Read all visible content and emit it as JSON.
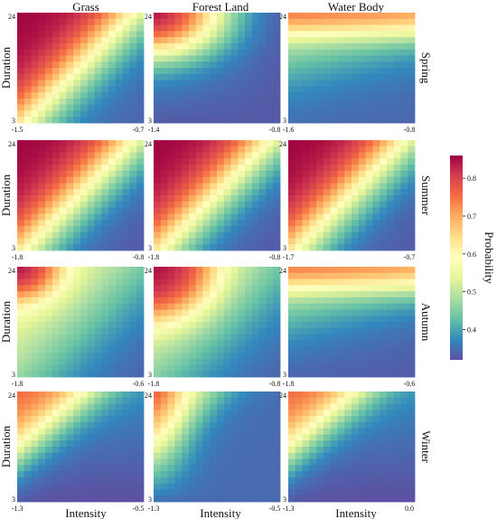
{
  "columns": [
    "Grass",
    "Forest Land",
    "Water Body"
  ],
  "rows": [
    "Spring",
    "Summer",
    "Autumn",
    "Winter"
  ],
  "ylabel": "Duration",
  "xlabel": "Intensity",
  "colorbar": {
    "label": "Probability",
    "min": 0.32,
    "max": 0.86,
    "ticks": [
      "0.8",
      "0.7",
      "0.6",
      "0.5",
      "0.4"
    ],
    "tick_values": [
      0.8,
      0.7,
      0.6,
      0.5,
      0.4
    ],
    "colormap": "Spectral_r"
  },
  "chart_data": {
    "type": "heatmap",
    "y_ticks": [
      "24",
      "3"
    ],
    "y_range": [
      3,
      24
    ],
    "panels": [
      {
        "row": "Spring",
        "col": "Grass",
        "x_ticks": [
          "-1.5",
          "-0.7"
        ],
        "x_range": [
          -1.5,
          -0.7
        ],
        "pattern": "diagonal",
        "min": 0.34,
        "max": 0.86
      },
      {
        "row": "Spring",
        "col": "Forest Land",
        "x_ticks": [
          "-1.4",
          "-0.8"
        ],
        "x_range": [
          -1.4,
          -0.8
        ],
        "pattern": "arc",
        "min": 0.33,
        "max": 0.86
      },
      {
        "row": "Spring",
        "col": "Water Body",
        "x_ticks": [
          "-1.6",
          "-0.8"
        ],
        "x_range": [
          -1.6,
          -0.8
        ],
        "pattern": "topband",
        "min": 0.34,
        "max": 0.82
      },
      {
        "row": "Summer",
        "col": "Grass",
        "x_ticks": [
          "-1.8",
          "-0.8"
        ],
        "x_range": [
          -1.8,
          -0.8
        ],
        "pattern": "diagonal",
        "min": 0.33,
        "max": 0.86
      },
      {
        "row": "Summer",
        "col": "Forest Land",
        "x_ticks": [
          "-1.8",
          "-0.8"
        ],
        "x_range": [
          -1.8,
          -0.8
        ],
        "pattern": "diagonal",
        "min": 0.33,
        "max": 0.86
      },
      {
        "row": "Summer",
        "col": "Water Body",
        "x_ticks": [
          "-1.7",
          "-0.7"
        ],
        "x_range": [
          -1.7,
          -0.7
        ],
        "pattern": "diagonal",
        "min": 0.33,
        "max": 0.86
      },
      {
        "row": "Autumn",
        "col": "Grass",
        "x_ticks": [
          "-1.8",
          "-0.6"
        ],
        "x_range": [
          -1.8,
          -0.6
        ],
        "pattern": "corner",
        "min": 0.33,
        "max": 0.86
      },
      {
        "row": "Autumn",
        "col": "Forest Land",
        "x_ticks": [
          "-1.8",
          "-0.8"
        ],
        "x_range": [
          -1.8,
          -0.8
        ],
        "pattern": "corner-wide",
        "min": 0.33,
        "max": 0.86
      },
      {
        "row": "Autumn",
        "col": "Water Body",
        "x_ticks": [
          "-1.8",
          "-0.6"
        ],
        "x_range": [
          -1.8,
          -0.6
        ],
        "pattern": "topband",
        "min": 0.33,
        "max": 0.82
      },
      {
        "row": "Winter",
        "col": "Grass",
        "x_ticks": [
          "-1.3",
          "-0.5"
        ],
        "x_range": [
          -1.3,
          -0.5
        ],
        "pattern": "winter",
        "min": 0.32,
        "max": 0.84
      },
      {
        "row": "Winter",
        "col": "Forest Land",
        "x_ticks": [
          "-1.3",
          "-0.5"
        ],
        "x_range": [
          -1.3,
          -0.5
        ],
        "pattern": "winter-left",
        "min": 0.32,
        "max": 0.84
      },
      {
        "row": "Winter",
        "col": "Water Body",
        "x_ticks": [
          "-1.3",
          "0.0"
        ],
        "x_range": [
          -1.3,
          0.0
        ],
        "pattern": "winter",
        "min": 0.32,
        "max": 0.84
      }
    ]
  }
}
